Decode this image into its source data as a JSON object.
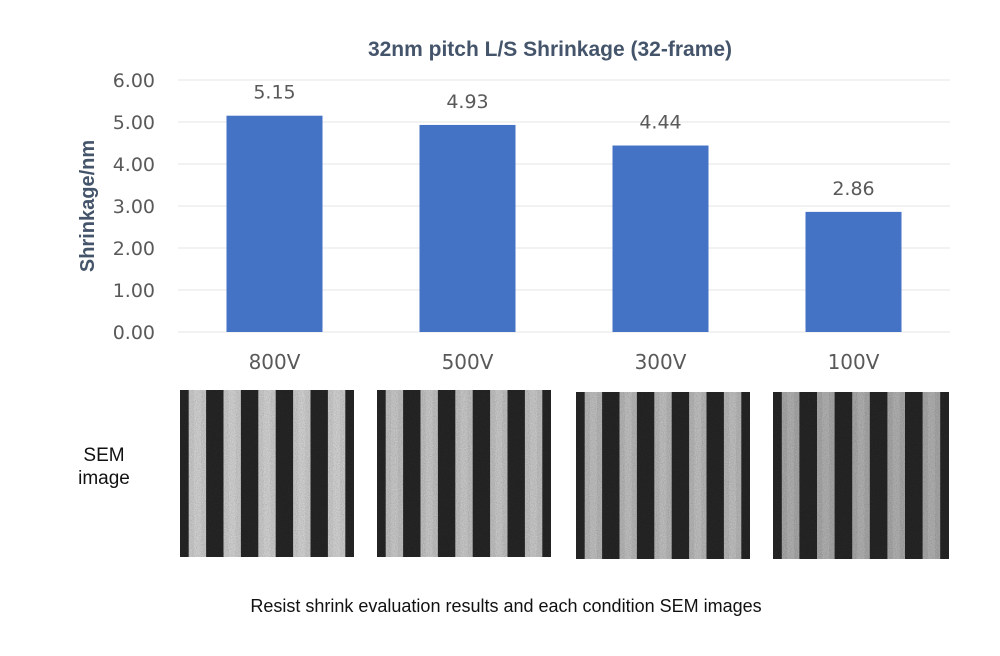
{
  "colors": {
    "bar": "#4472c4",
    "grid": "#e6e6e6",
    "text": "#595959",
    "title": "#44546a"
  },
  "chart_data": {
    "type": "bar",
    "title": "32nm pitch L/S Shrinkage (32-frame)",
    "xlabel": "",
    "ylabel": "Shrinkage/nm",
    "categories": [
      "800V",
      "500V",
      "300V",
      "100V"
    ],
    "values": [
      5.15,
      4.93,
      4.44,
      2.86
    ],
    "data_labels": [
      "5.15",
      "4.93",
      "4.44",
      "2.86"
    ],
    "ylim": [
      0,
      6
    ],
    "yticks": [
      0,
      1,
      2,
      3,
      4,
      5,
      6
    ],
    "ytick_labels": [
      "0.00",
      "1.00",
      "2.00",
      "3.00",
      "4.00",
      "5.00",
      "6.00"
    ],
    "grid": true,
    "legend": "none"
  },
  "sem": {
    "label_line1": "SEM",
    "label_line2": "image",
    "images": [
      {
        "name": "800V",
        "periods": 5,
        "contrast": 0.9
      },
      {
        "name": "500V",
        "periods": 5,
        "contrast": 0.8
      },
      {
        "name": "300V",
        "periods": 5,
        "contrast": 0.7
      },
      {
        "name": "100V",
        "periods": 5,
        "contrast": 0.55
      }
    ]
  },
  "caption": "Resist shrink evaluation results and each condition SEM images"
}
